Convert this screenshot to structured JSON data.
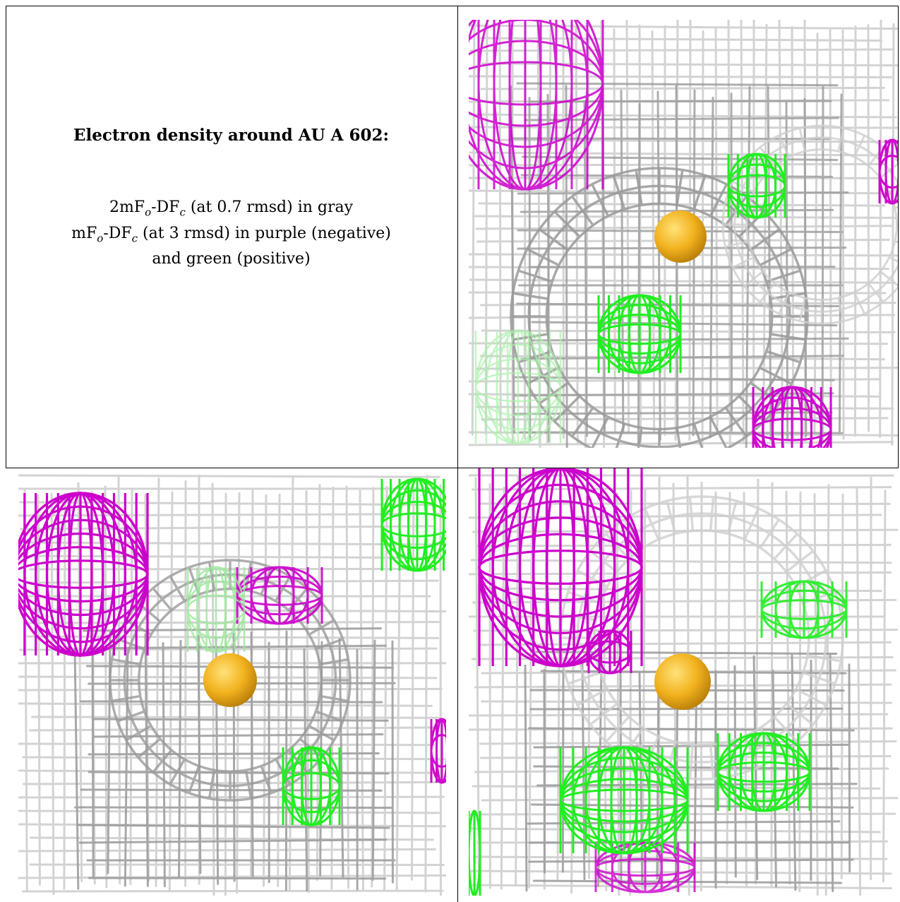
{
  "caption": {
    "title": "Electron density around AU A 602:",
    "line1_prefix": "2mF",
    "line1_sub1": "o",
    "line1_mid": "-DF",
    "line1_sub2": "c",
    "line1_suffix": " (at 0.7 rmsd) in gray",
    "line2_prefix": "mF",
    "line2_sub1": "o",
    "line2_mid": "-DF",
    "line2_sub2": "c",
    "line2_suffix": " (at 3 rmsd) in purple (negative)",
    "line3": "and green (positive)"
  },
  "colors": {
    "gray_mesh": "#9a9a9a",
    "gray_mesh_light": "#cfcfcf",
    "purple_mesh": "#cc00cc",
    "green_mesh": "#22ee22",
    "atom": "#f2b21e"
  },
  "panels": [
    {
      "name": "view-1",
      "atom": "AU A 602"
    },
    {
      "name": "view-2",
      "atom": "AU A 602"
    },
    {
      "name": "view-3",
      "atom": "AU A 602"
    }
  ]
}
